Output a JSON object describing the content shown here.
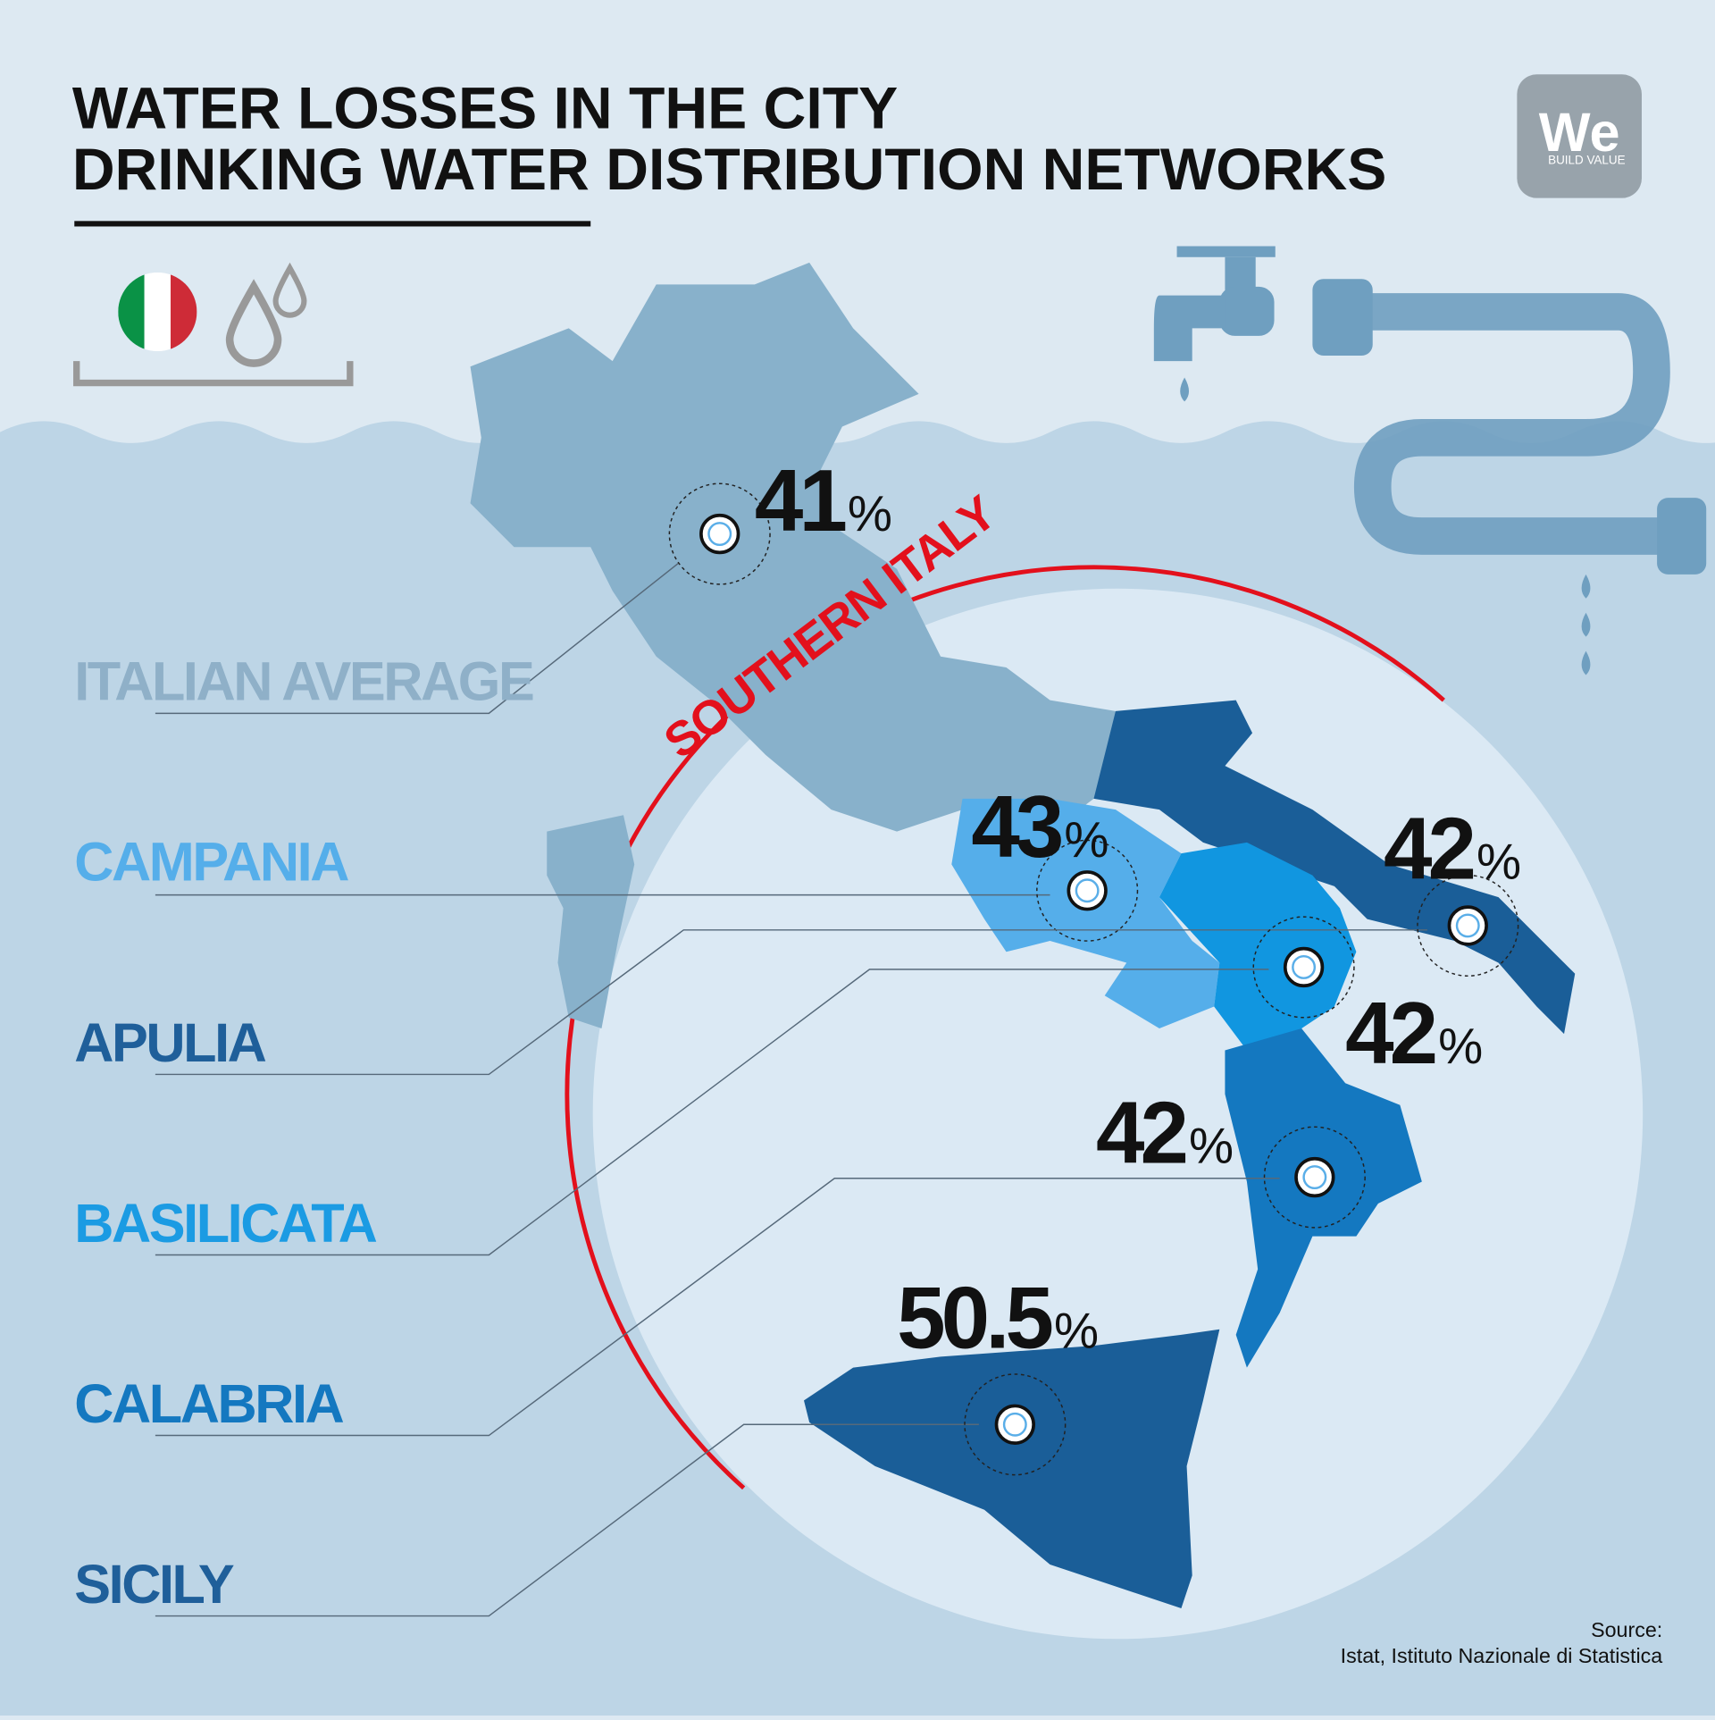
{
  "header": {
    "title_lines": [
      "WATER LOSSES IN THE CITY",
      "DRINKING WATER DISTRIBUTION NETWORKS"
    ]
  },
  "logo": {
    "mark": "We",
    "tagline": "BUILD VALUE"
  },
  "highlight": "SOUTHERN ITALY",
  "regions": [
    {
      "name": "ITALIAN AVERAGE",
      "value": 41,
      "unit": "%"
    },
    {
      "name": "CAMPANIA",
      "value": 43,
      "unit": "%"
    },
    {
      "name": "APULIA",
      "value": 42,
      "unit": "%"
    },
    {
      "name": "BASILICATA",
      "value": 42,
      "unit": "%"
    },
    {
      "name": "CALABRIA",
      "value": 42,
      "unit": "%"
    },
    {
      "name": "SICILY",
      "value": 50.5,
      "unit": "%"
    }
  ],
  "source": {
    "label": "Source:",
    "text": "Istat, Istituto Nazionale di Statistica"
  }
}
